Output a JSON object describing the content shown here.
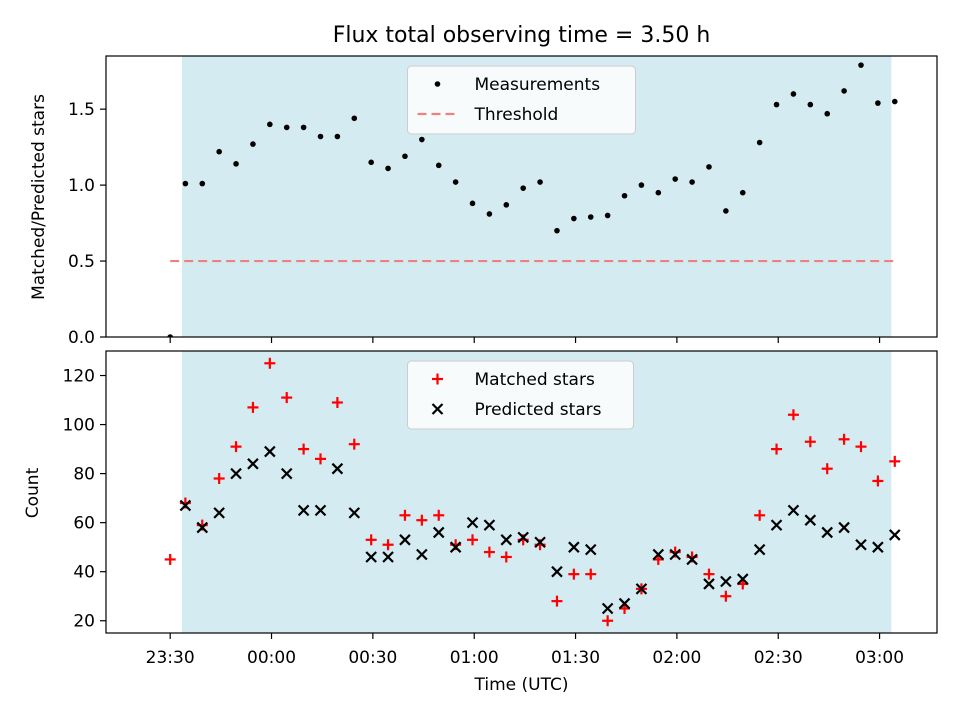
{
  "chart_data": [
    {
      "type": "scatter",
      "title": "Flux total observing time = 3.50 h",
      "xlabel": "",
      "ylabel": "Matched/Predicted stars",
      "ylim": [
        0,
        1.85
      ],
      "yticks": [
        0.0,
        0.5,
        1.0,
        1.5
      ],
      "ytick_labels": [
        "0.0",
        "0.5",
        "1.0",
        "1.5"
      ],
      "x_unit": "minutes after 23:00 UTC",
      "shaded_span": [
        33.5,
        243.5
      ],
      "shade_color": "#d4ebf1",
      "legend": {
        "placement": "upper center"
      },
      "series": [
        {
          "name": "Measurements",
          "marker": "dot",
          "color": "#000000",
          "x": [
            30,
            34.5,
            39.5,
            44.5,
            49.5,
            54.5,
            59.5,
            64.5,
            69.5,
            74.5,
            79.5,
            84.5,
            89.5,
            94.5,
            99.5,
            104.5,
            109.5,
            114.5,
            119.5,
            124.5,
            129.5,
            134.5,
            139.5,
            144.5,
            149.5,
            154.5,
            159.5,
            164.5,
            169.5,
            174.5,
            179.5,
            184.5,
            189.5,
            194.5,
            199.5,
            204.5,
            209.5,
            214.5,
            219.5,
            224.5,
            229.5,
            234.5,
            239.5,
            244.5
          ],
          "y": [
            0.0,
            1.01,
            1.01,
            1.22,
            1.14,
            1.27,
            1.4,
            1.38,
            1.38,
            1.32,
            1.32,
            1.44,
            1.15,
            1.11,
            1.19,
            1.3,
            1.13,
            1.02,
            0.88,
            0.81,
            0.87,
            0.98,
            1.02,
            0.7,
            0.78,
            0.79,
            0.8,
            0.93,
            1.0,
            0.95,
            1.04,
            1.02,
            1.12,
            0.83,
            0.95,
            1.28,
            1.53,
            1.6,
            1.53,
            1.47,
            1.62,
            1.79,
            1.54,
            1.55
          ]
        },
        {
          "name": "Threshold",
          "marker": "dashed-line",
          "color": "#f08080",
          "x": [
            30,
            244.5
          ],
          "y": [
            0.5,
            0.5
          ]
        }
      ]
    },
    {
      "type": "scatter",
      "title": "",
      "xlabel": "Time (UTC)",
      "ylabel": "Count",
      "ylim": [
        15,
        130
      ],
      "yticks": [
        20,
        40,
        60,
        80,
        100,
        120
      ],
      "ytick_labels": [
        "20",
        "40",
        "60",
        "80",
        "100",
        "120"
      ],
      "xlim": [
        11,
        257
      ],
      "xticks": [
        30,
        60,
        90,
        120,
        150,
        180,
        210,
        240
      ],
      "xtick_labels": [
        "23:30",
        "00:00",
        "00:30",
        "01:00",
        "01:30",
        "02:00",
        "02:30",
        "03:00"
      ],
      "x_unit": "minutes after 23:00 UTC",
      "shaded_span": [
        33.5,
        243.5
      ],
      "shade_color": "#d4ebf1",
      "legend": {
        "placement": "upper center"
      },
      "series": [
        {
          "name": "Matched stars",
          "marker": "plus",
          "color": "#ff0000",
          "x": [
            30,
            34.5,
            39.5,
            44.5,
            49.5,
            54.5,
            59.5,
            64.5,
            69.5,
            74.5,
            79.5,
            84.5,
            89.5,
            94.5,
            99.5,
            104.5,
            109.5,
            114.5,
            119.5,
            124.5,
            129.5,
            134.5,
            139.5,
            144.5,
            149.5,
            154.5,
            159.5,
            164.5,
            169.5,
            174.5,
            179.5,
            184.5,
            189.5,
            194.5,
            199.5,
            204.5,
            209.5,
            214.5,
            219.5,
            224.5,
            229.5,
            234.5,
            239.5,
            244.5
          ],
          "y": [
            45,
            68,
            59,
            78,
            91,
            107,
            125,
            111,
            90,
            86,
            109,
            92,
            53,
            51,
            63,
            61,
            63,
            51,
            53,
            48,
            46,
            53,
            51,
            28,
            39,
            39,
            20,
            25,
            33,
            45,
            48,
            46,
            39,
            30,
            35,
            63,
            90,
            104,
            93,
            82,
            94,
            91,
            77,
            85
          ]
        },
        {
          "name": "Predicted stars",
          "marker": "x",
          "color": "#000000",
          "x": [
            34.5,
            39.5,
            44.5,
            49.5,
            54.5,
            59.5,
            64.5,
            69.5,
            74.5,
            79.5,
            84.5,
            89.5,
            94.5,
            99.5,
            104.5,
            109.5,
            114.5,
            119.5,
            124.5,
            129.5,
            134.5,
            139.5,
            144.5,
            149.5,
            154.5,
            159.5,
            164.5,
            169.5,
            174.5,
            179.5,
            184.5,
            189.5,
            194.5,
            199.5,
            204.5,
            209.5,
            214.5,
            219.5,
            224.5,
            229.5,
            234.5,
            239.5,
            244.5
          ],
          "y": [
            67,
            58,
            64,
            80,
            84,
            89,
            80,
            65,
            65,
            82,
            64,
            46,
            46,
            53,
            47,
            56,
            50,
            60,
            59,
            53,
            54,
            52,
            40,
            50,
            49,
            25,
            27,
            33,
            47,
            47,
            45,
            35,
            36,
            37,
            49,
            59,
            65,
            61,
            56,
            58,
            51,
            50,
            55
          ]
        }
      ]
    }
  ]
}
